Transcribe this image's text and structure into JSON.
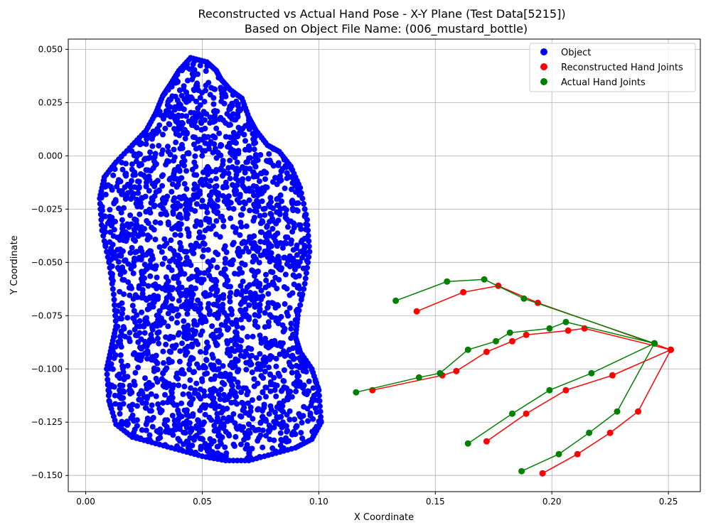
{
  "chart_data": {
    "type": "scatter",
    "title": "Reconstructed vs Actual Hand Pose - X-Y Plane (Test Data[5215])",
    "subtitle": "Based on Object File Name: (006_mustard_bottle)",
    "xlabel": "X Coordinate",
    "ylabel": "Y Coordinate",
    "xlim": [
      -0.0075,
      0.2637
    ],
    "ylim": [
      -0.1576,
      0.0548
    ],
    "xticks": [
      0.0,
      0.05,
      0.1,
      0.15,
      0.2,
      0.25
    ],
    "xtick_labels": [
      "0.00",
      "0.05",
      "0.10",
      "0.15",
      "0.20",
      "0.25"
    ],
    "yticks": [
      0.05,
      0.025,
      0.0,
      -0.025,
      -0.05,
      -0.075,
      -0.1,
      -0.125,
      -0.15
    ],
    "ytick_labels": [
      "0.050",
      "0.025",
      "0.000",
      "−0.025",
      "−0.050",
      "−0.075",
      "−0.100",
      "−0.125",
      "−0.150"
    ],
    "grid": true,
    "legend_position": "upper-right",
    "series": [
      {
        "name": "Object",
        "color": "#0000ff",
        "style": "points",
        "outline": [
          [
            0.045,
            0.046
          ],
          [
            0.052,
            0.044
          ],
          [
            0.056,
            0.04
          ],
          [
            0.058,
            0.036
          ],
          [
            0.062,
            0.031
          ],
          [
            0.067,
            0.027
          ],
          [
            0.07,
            0.018
          ],
          [
            0.073,
            0.012
          ],
          [
            0.078,
            0.005
          ],
          [
            0.083,
            0.002
          ],
          [
            0.088,
            -0.005
          ],
          [
            0.092,
            -0.015
          ],
          [
            0.095,
            -0.03
          ],
          [
            0.096,
            -0.045
          ],
          [
            0.094,
            -0.06
          ],
          [
            0.091,
            -0.075
          ],
          [
            0.09,
            -0.085
          ],
          [
            0.092,
            -0.092
          ],
          [
            0.097,
            -0.1
          ],
          [
            0.1,
            -0.11
          ],
          [
            0.101,
            -0.125
          ],
          [
            0.097,
            -0.133
          ],
          [
            0.09,
            -0.137
          ],
          [
            0.08,
            -0.14
          ],
          [
            0.07,
            -0.143
          ],
          [
            0.06,
            -0.143
          ],
          [
            0.05,
            -0.141
          ],
          [
            0.04,
            -0.138
          ],
          [
            0.03,
            -0.135
          ],
          [
            0.02,
            -0.132
          ],
          [
            0.013,
            -0.126
          ],
          [
            0.01,
            -0.115
          ],
          [
            0.009,
            -0.1
          ],
          [
            0.011,
            -0.09
          ],
          [
            0.013,
            -0.08
          ],
          [
            0.012,
            -0.065
          ],
          [
            0.01,
            -0.05
          ],
          [
            0.007,
            -0.035
          ],
          [
            0.006,
            -0.02
          ],
          [
            0.008,
            -0.01
          ],
          [
            0.013,
            -0.003
          ],
          [
            0.02,
            0.005
          ],
          [
            0.026,
            0.012
          ],
          [
            0.03,
            0.02
          ],
          [
            0.033,
            0.028
          ],
          [
            0.036,
            0.033
          ],
          [
            0.04,
            0.04
          ]
        ]
      },
      {
        "name": "Reconstructed Hand Joints",
        "color": "#ff0000",
        "style": "lines",
        "wrist": [
          0.251,
          -0.091
        ],
        "chains": [
          [
            [
              0.251,
              -0.091
            ],
            [
              0.194,
              -0.069
            ],
            [
              0.177,
              -0.061
            ],
            [
              0.162,
              -0.064
            ],
            [
              0.142,
              -0.073
            ]
          ],
          [
            [
              0.251,
              -0.091
            ],
            [
              0.214,
              -0.081
            ],
            [
              0.207,
              -0.082
            ],
            [
              0.189,
              -0.084
            ],
            [
              0.183,
              -0.087
            ],
            [
              0.172,
              -0.092
            ],
            [
              0.159,
              -0.101
            ],
            [
              0.153,
              -0.103
            ],
            [
              0.123,
              -0.11
            ]
          ],
          [
            [
              0.251,
              -0.091
            ],
            [
              0.226,
              -0.103
            ],
            [
              0.206,
              -0.11
            ],
            [
              0.189,
              -0.121
            ],
            [
              0.172,
              -0.134
            ]
          ],
          [
            [
              0.251,
              -0.091
            ],
            [
              0.237,
              -0.12
            ],
            [
              0.225,
              -0.13
            ],
            [
              0.211,
              -0.14
            ],
            [
              0.196,
              -0.149
            ]
          ]
        ]
      },
      {
        "name": "Actual Hand Joints",
        "color": "#008000",
        "style": "lines",
        "wrist": [
          0.244,
          -0.088
        ],
        "chains": [
          [
            [
              0.244,
              -0.088
            ],
            [
              0.188,
              -0.067
            ],
            [
              0.171,
              -0.058
            ],
            [
              0.155,
              -0.059
            ],
            [
              0.133,
              -0.068
            ]
          ],
          [
            [
              0.244,
              -0.088
            ],
            [
              0.206,
              -0.078
            ],
            [
              0.199,
              -0.081
            ],
            [
              0.182,
              -0.083
            ],
            [
              0.176,
              -0.087
            ],
            [
              0.164,
              -0.091
            ],
            [
              0.152,
              -0.102
            ],
            [
              0.143,
              -0.104
            ],
            [
              0.116,
              -0.111
            ]
          ],
          [
            [
              0.244,
              -0.088
            ],
            [
              0.217,
              -0.102
            ],
            [
              0.199,
              -0.11
            ],
            [
              0.183,
              -0.121
            ],
            [
              0.164,
              -0.135
            ]
          ],
          [
            [
              0.244,
              -0.088
            ],
            [
              0.228,
              -0.12
            ],
            [
              0.216,
              -0.13
            ],
            [
              0.203,
              -0.14
            ],
            [
              0.187,
              -0.148
            ]
          ]
        ]
      }
    ]
  }
}
